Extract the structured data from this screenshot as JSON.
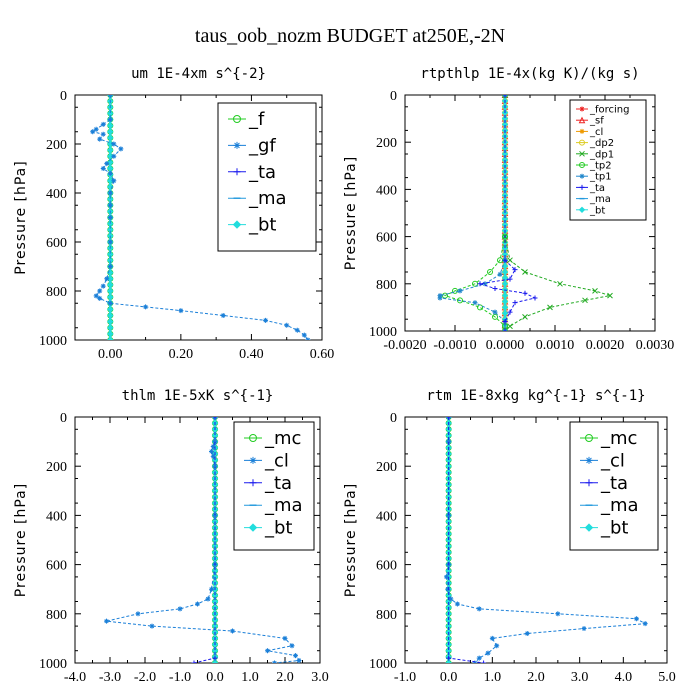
{
  "figure": {
    "title": "taus_oob_nozm  BUDGET at250E,-2N"
  },
  "chart_data": [
    {
      "type": "line",
      "title": "um  1E-4xm s^{-2}",
      "xlabel": "",
      "ylabel": "Pressure [hPa]",
      "xlim": [
        -0.1,
        0.6
      ],
      "ylim": [
        1000,
        0
      ],
      "xticks": [
        0.0,
        0.2,
        0.4,
        0.6
      ],
      "xtick_labels": [
        "0.00",
        "0.20",
        "0.40",
        "0.60"
      ],
      "yticks": [
        0,
        200,
        400,
        600,
        800,
        1000
      ],
      "ytick_labels": [
        "0",
        "200",
        "400",
        "600",
        "800",
        "1000"
      ],
      "legend": {
        "position": "upper-right",
        "size": "large"
      },
      "series": [
        {
          "name": "_f",
          "color": "#22cc22",
          "marker": "o",
          "pressure": [
            0,
            100,
            200,
            300,
            400,
            500,
            600,
            700,
            800,
            900,
            1000
          ],
          "values": [
            0,
            0,
            0,
            0,
            0,
            0,
            0,
            0,
            0,
            0,
            0
          ]
        },
        {
          "name": "_gf",
          "color": "#1a7fd8",
          "marker": "star",
          "pressure": [
            0,
            100,
            120,
            140,
            150,
            160,
            180,
            200,
            220,
            250,
            280,
            300,
            320,
            350,
            400,
            450,
            500,
            600,
            700,
            750,
            780,
            800,
            820,
            830,
            850,
            865,
            880,
            900,
            920,
            940,
            960,
            980,
            1000
          ],
          "values": [
            0,
            0,
            -0.02,
            -0.04,
            -0.05,
            -0.02,
            -0.03,
            0.01,
            0.03,
            0.01,
            -0.01,
            -0.02,
            0.0,
            0.01,
            0.0,
            0.0,
            0.0,
            0.0,
            0.0,
            -0.01,
            -0.02,
            -0.03,
            -0.04,
            -0.03,
            0.0,
            0.1,
            0.2,
            0.32,
            0.44,
            0.5,
            0.53,
            0.55,
            0.56
          ]
        },
        {
          "name": "_ta",
          "color": "#1a1aee",
          "marker": "plus",
          "pressure": [
            0,
            500,
            1000
          ],
          "values": [
            0,
            0,
            0
          ]
        },
        {
          "name": "_ma",
          "color": "#2299dd",
          "marker": "dash",
          "pressure": [
            0,
            500,
            1000
          ],
          "values": [
            0,
            0,
            0
          ]
        },
        {
          "name": "_bt",
          "color": "#22dddd",
          "marker": "diamond",
          "pressure": [
            0,
            500,
            1000
          ],
          "values": [
            0,
            0,
            0
          ]
        }
      ]
    },
    {
      "type": "line",
      "title": "rtpthlp  1E-4x(kg K)/(kg s)",
      "xlabel": "",
      "ylabel": "Pressure [hPa]",
      "xlim": [
        -0.002,
        0.003
      ],
      "ylim": [
        1000,
        0
      ],
      "xticks": [
        -0.002,
        -0.001,
        0.0,
        0.001,
        0.002,
        0.003
      ],
      "xtick_labels": [
        "-0.0020",
        "-0.0010",
        "0.0000",
        "0.0010",
        "0.0020",
        "0.0030"
      ],
      "yticks": [
        0,
        200,
        400,
        600,
        800,
        1000
      ],
      "ytick_labels": [
        "0",
        "200",
        "400",
        "600",
        "800",
        "1000"
      ],
      "legend": {
        "position": "upper-right",
        "size": "small"
      },
      "series": [
        {
          "name": "_forcing",
          "color": "#ee2222",
          "marker": "star",
          "pressure": [
            0,
            500,
            1000
          ],
          "values": [
            0,
            0,
            0
          ]
        },
        {
          "name": "_sf",
          "color": "#ee2222",
          "marker": "triangle",
          "pressure": [
            0,
            500,
            1000
          ],
          "values": [
            0,
            0,
            0
          ]
        },
        {
          "name": "_cl",
          "color": "#ee9900",
          "marker": "star",
          "pressure": [
            0,
            500,
            1000
          ],
          "values": [
            0,
            0,
            0
          ]
        },
        {
          "name": "_dp2",
          "color": "#ddcc22",
          "marker": "o",
          "pressure": [
            0,
            500,
            1000
          ],
          "values": [
            0,
            0,
            0
          ]
        },
        {
          "name": "_dp1",
          "color": "#22aa22",
          "marker": "x",
          "pressure": [
            0,
            600,
            700,
            750,
            800,
            830,
            850,
            870,
            900,
            940,
            980,
            1000
          ],
          "values": [
            0,
            0,
            0.0001,
            0.0004,
            0.0011,
            0.0018,
            0.0021,
            0.0016,
            0.0009,
            0.0004,
            0.0001,
            0
          ]
        },
        {
          "name": "_tp2",
          "color": "#22cc22",
          "marker": "o",
          "pressure": [
            0,
            600,
            700,
            750,
            800,
            830,
            850,
            870,
            900,
            940,
            980,
            1000
          ],
          "values": [
            0,
            0,
            -0.0001,
            -0.0003,
            -0.0006,
            -0.001,
            -0.0012,
            -0.0009,
            -0.0005,
            -0.0002,
            0,
            0
          ]
        },
        {
          "name": "_tp1",
          "color": "#2288cc",
          "marker": "star",
          "pressure": [
            0,
            700,
            760,
            800,
            830,
            850,
            860,
            880,
            920,
            960,
            1000
          ],
          "values": [
            0,
            0,
            -0.0001,
            -0.0004,
            -0.0009,
            -0.0013,
            -0.0013,
            -0.0006,
            -0.0002,
            0,
            0
          ]
        },
        {
          "name": "_ta",
          "color": "#1a1aee",
          "marker": "plus",
          "pressure": [
            0,
            700,
            740,
            780,
            800,
            820,
            840,
            860,
            880,
            920,
            960,
            1000
          ],
          "values": [
            0,
            0,
            0.0002,
            0.0001,
            -0.0005,
            -0.0002,
            0.0004,
            0.0006,
            0.0002,
            0.0001,
            0,
            0
          ]
        },
        {
          "name": "_ma",
          "color": "#2299dd",
          "marker": "dash",
          "pressure": [
            0,
            500,
            1000
          ],
          "values": [
            0,
            0,
            0
          ]
        },
        {
          "name": "_bt",
          "color": "#22dddd",
          "marker": "diamond",
          "pressure": [
            0,
            500,
            1000
          ],
          "values": [
            0,
            0,
            0
          ]
        }
      ]
    },
    {
      "type": "line",
      "title": "thlm  1E-5xK s^{-1}",
      "xlabel": "",
      "ylabel": "Pressure [hPa]",
      "xlim": [
        -4.0,
        3.0
      ],
      "ylim": [
        1000,
        0
      ],
      "xticks": [
        -4,
        -3,
        -2,
        -1,
        0,
        1,
        2,
        3
      ],
      "xtick_labels": [
        "-4.0",
        "-3.0",
        "-2.0",
        "-1.0",
        "0.0",
        "1.0",
        "2.0",
        "3.0"
      ],
      "yticks": [
        0,
        200,
        400,
        600,
        800,
        1000
      ],
      "ytick_labels": [
        "0",
        "200",
        "400",
        "600",
        "800",
        "1000"
      ],
      "legend": {
        "position": "upper-right",
        "size": "large"
      },
      "series": [
        {
          "name": "_mc",
          "color": "#22cc22",
          "marker": "o",
          "pressure": [
            0,
            100,
            200,
            300,
            400,
            500,
            600,
            700,
            800,
            900,
            1000
          ],
          "values": [
            0,
            0,
            0,
            0,
            0,
            0,
            0,
            0,
            0,
            0,
            0
          ]
        },
        {
          "name": "_cl",
          "color": "#1a7fd8",
          "marker": "star",
          "pressure": [
            0,
            100,
            120,
            140,
            160,
            200,
            400,
            600,
            700,
            740,
            760,
            780,
            800,
            830,
            850,
            870,
            900,
            930,
            950,
            970,
            990,
            1000
          ],
          "values": [
            0,
            0,
            -0.05,
            -0.1,
            -0.05,
            0,
            0,
            0,
            -0.1,
            -0.2,
            -0.5,
            -1.0,
            -2.2,
            -3.1,
            -1.8,
            0.5,
            2.0,
            2.2,
            1.5,
            2.3,
            2.4,
            1.7
          ]
        },
        {
          "name": "_ta",
          "color": "#1a1aee",
          "marker": "plus",
          "pressure": [
            0,
            980,
            1000
          ],
          "values": [
            0,
            0,
            -0.6
          ]
        },
        {
          "name": "_ma",
          "color": "#2299dd",
          "marker": "dash",
          "pressure": [
            0,
            500,
            1000
          ],
          "values": [
            0,
            0,
            0
          ]
        },
        {
          "name": "_bt",
          "color": "#22dddd",
          "marker": "diamond",
          "pressure": [
            0,
            500,
            1000
          ],
          "values": [
            0,
            0,
            0
          ]
        }
      ]
    },
    {
      "type": "line",
      "title": "rtm  1E-8xkg kg^{-1} s^{-1}",
      "xlabel": "",
      "ylabel": "Pressure [hPa]",
      "xlim": [
        -1.0,
        5.0
      ],
      "ylim": [
        1000,
        0
      ],
      "xticks": [
        -1,
        0,
        1,
        2,
        3,
        4,
        5
      ],
      "xtick_labels": [
        "-1.0",
        "0.0",
        "1.0",
        "2.0",
        "3.0",
        "4.0",
        "5.0"
      ],
      "yticks": [
        0,
        200,
        400,
        600,
        800,
        1000
      ],
      "ytick_labels": [
        "0",
        "200",
        "400",
        "600",
        "800",
        "1000"
      ],
      "legend": {
        "position": "upper-right",
        "size": "large"
      },
      "series": [
        {
          "name": "_mc",
          "color": "#22cc22",
          "marker": "o",
          "pressure": [
            0,
            100,
            200,
            300,
            400,
            500,
            600,
            700,
            800,
            900,
            1000
          ],
          "values": [
            0,
            0,
            0,
            0,
            0,
            0,
            0,
            0,
            0,
            0,
            0
          ]
        },
        {
          "name": "_cl",
          "color": "#1a7fd8",
          "marker": "star",
          "pressure": [
            0,
            100,
            400,
            600,
            650,
            700,
            740,
            760,
            780,
            800,
            820,
            840,
            860,
            880,
            900,
            930,
            960,
            980,
            1000
          ],
          "values": [
            0,
            0,
            0,
            0,
            -0.05,
            -0.02,
            0.05,
            0.2,
            0.7,
            2.5,
            4.3,
            4.5,
            3.1,
            1.8,
            1.0,
            1.1,
            0.9,
            0.7,
            0.6
          ]
        },
        {
          "name": "_ta",
          "color": "#1a1aee",
          "marker": "plus",
          "pressure": [
            0,
            980,
            1000
          ],
          "values": [
            0,
            0,
            0.8
          ]
        },
        {
          "name": "_ma",
          "color": "#2299dd",
          "marker": "dash",
          "pressure": [
            0,
            500,
            1000
          ],
          "values": [
            0,
            0,
            0
          ]
        },
        {
          "name": "_bt",
          "color": "#22dddd",
          "marker": "diamond",
          "pressure": [
            0,
            500,
            1000
          ],
          "values": [
            0,
            0,
            0
          ]
        }
      ]
    }
  ]
}
